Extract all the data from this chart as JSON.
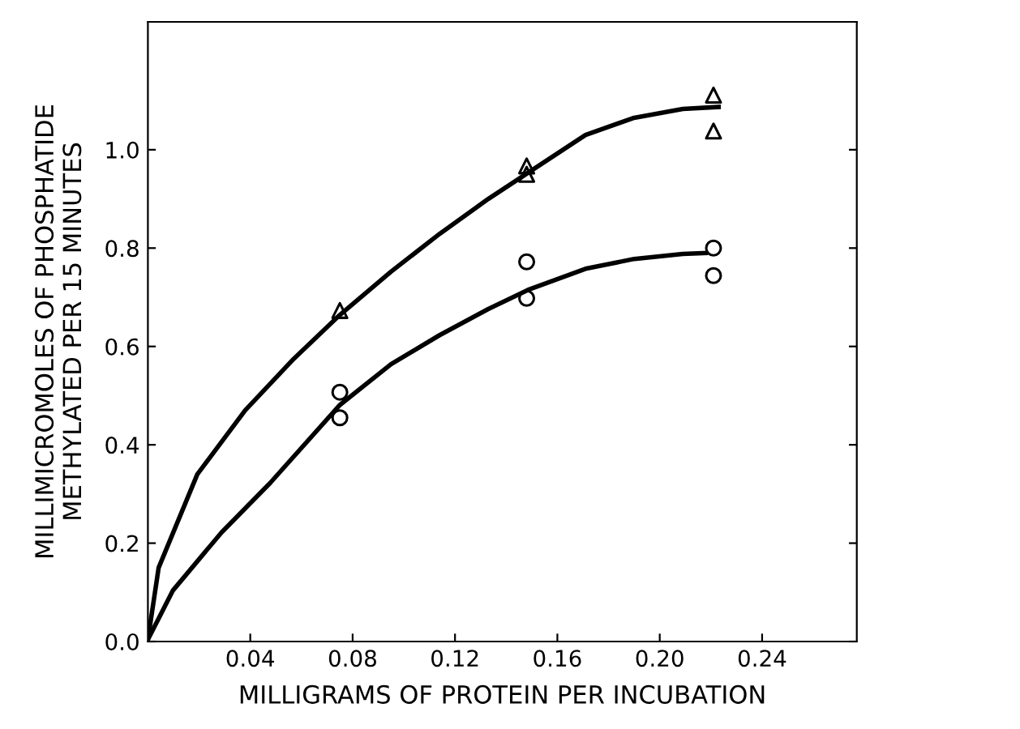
{
  "chart_data": {
    "type": "scatter",
    "xlabel": "MILLIGRAMS OF PROTEIN PER INCUBATION",
    "ylabel": "MILLIMICROMOLES OF PHOSPHATIDE\nMETHYLATED PER 15 MINUTES",
    "xlim": [
      0,
      0.277
    ],
    "ylim": [
      0,
      1.26
    ],
    "xticks": [
      0.04,
      0.08,
      0.12,
      0.16,
      {
        "value": 0.2,
        "label": "0.20"
      },
      0.24
    ],
    "yticks": [
      {
        "value": 0,
        "label": "0.0"
      },
      0.2,
      0.4,
      0.6,
      0.8,
      {
        "value": 1,
        "label": "1.0"
      }
    ],
    "grid": false,
    "legend": false,
    "series": [
      {
        "marker": "triangle",
        "color": "#000000",
        "x": [
          0.075,
          0.148,
          0.148,
          0.221,
          0.221
        ],
        "values": [
          0.673,
          0.967,
          0.95,
          1.111,
          1.038
        ]
      },
      {
        "marker": "circle",
        "color": "#000000",
        "x": [
          0.075,
          0.075,
          0.148,
          0.148,
          0.221,
          0.221
        ],
        "values": [
          0.507,
          0.455,
          0.772,
          0.698,
          0.8,
          0.744
        ]
      },
      {
        "type": "line",
        "marker": "none",
        "line_style": "solid",
        "color": "#000000",
        "x": [
          0,
          0.0042,
          0.0193,
          0.038,
          0.057,
          0.075,
          0.095,
          0.114,
          0.133,
          0.1485,
          0.171,
          0.19,
          0.209,
          0.223
        ],
        "values": [
          0.004,
          0.15,
          0.34,
          0.47,
          0.575,
          0.664,
          0.752,
          0.829,
          0.9,
          0.953,
          1.03,
          1.065,
          1.083,
          1.087
        ]
      },
      {
        "type": "line",
        "marker": "none",
        "line_style": "solid",
        "color": "#000000",
        "x": [
          0,
          0.0098,
          0.0288,
          0.0477,
          0.075,
          0.095,
          0.114,
          0.133,
          0.1485,
          0.171,
          0.19,
          0.209,
          0.218
        ],
        "values": [
          0.004,
          0.104,
          0.222,
          0.322,
          0.481,
          0.564,
          0.623,
          0.676,
          0.715,
          0.758,
          0.778,
          0.788,
          0.79
        ]
      }
    ]
  }
}
